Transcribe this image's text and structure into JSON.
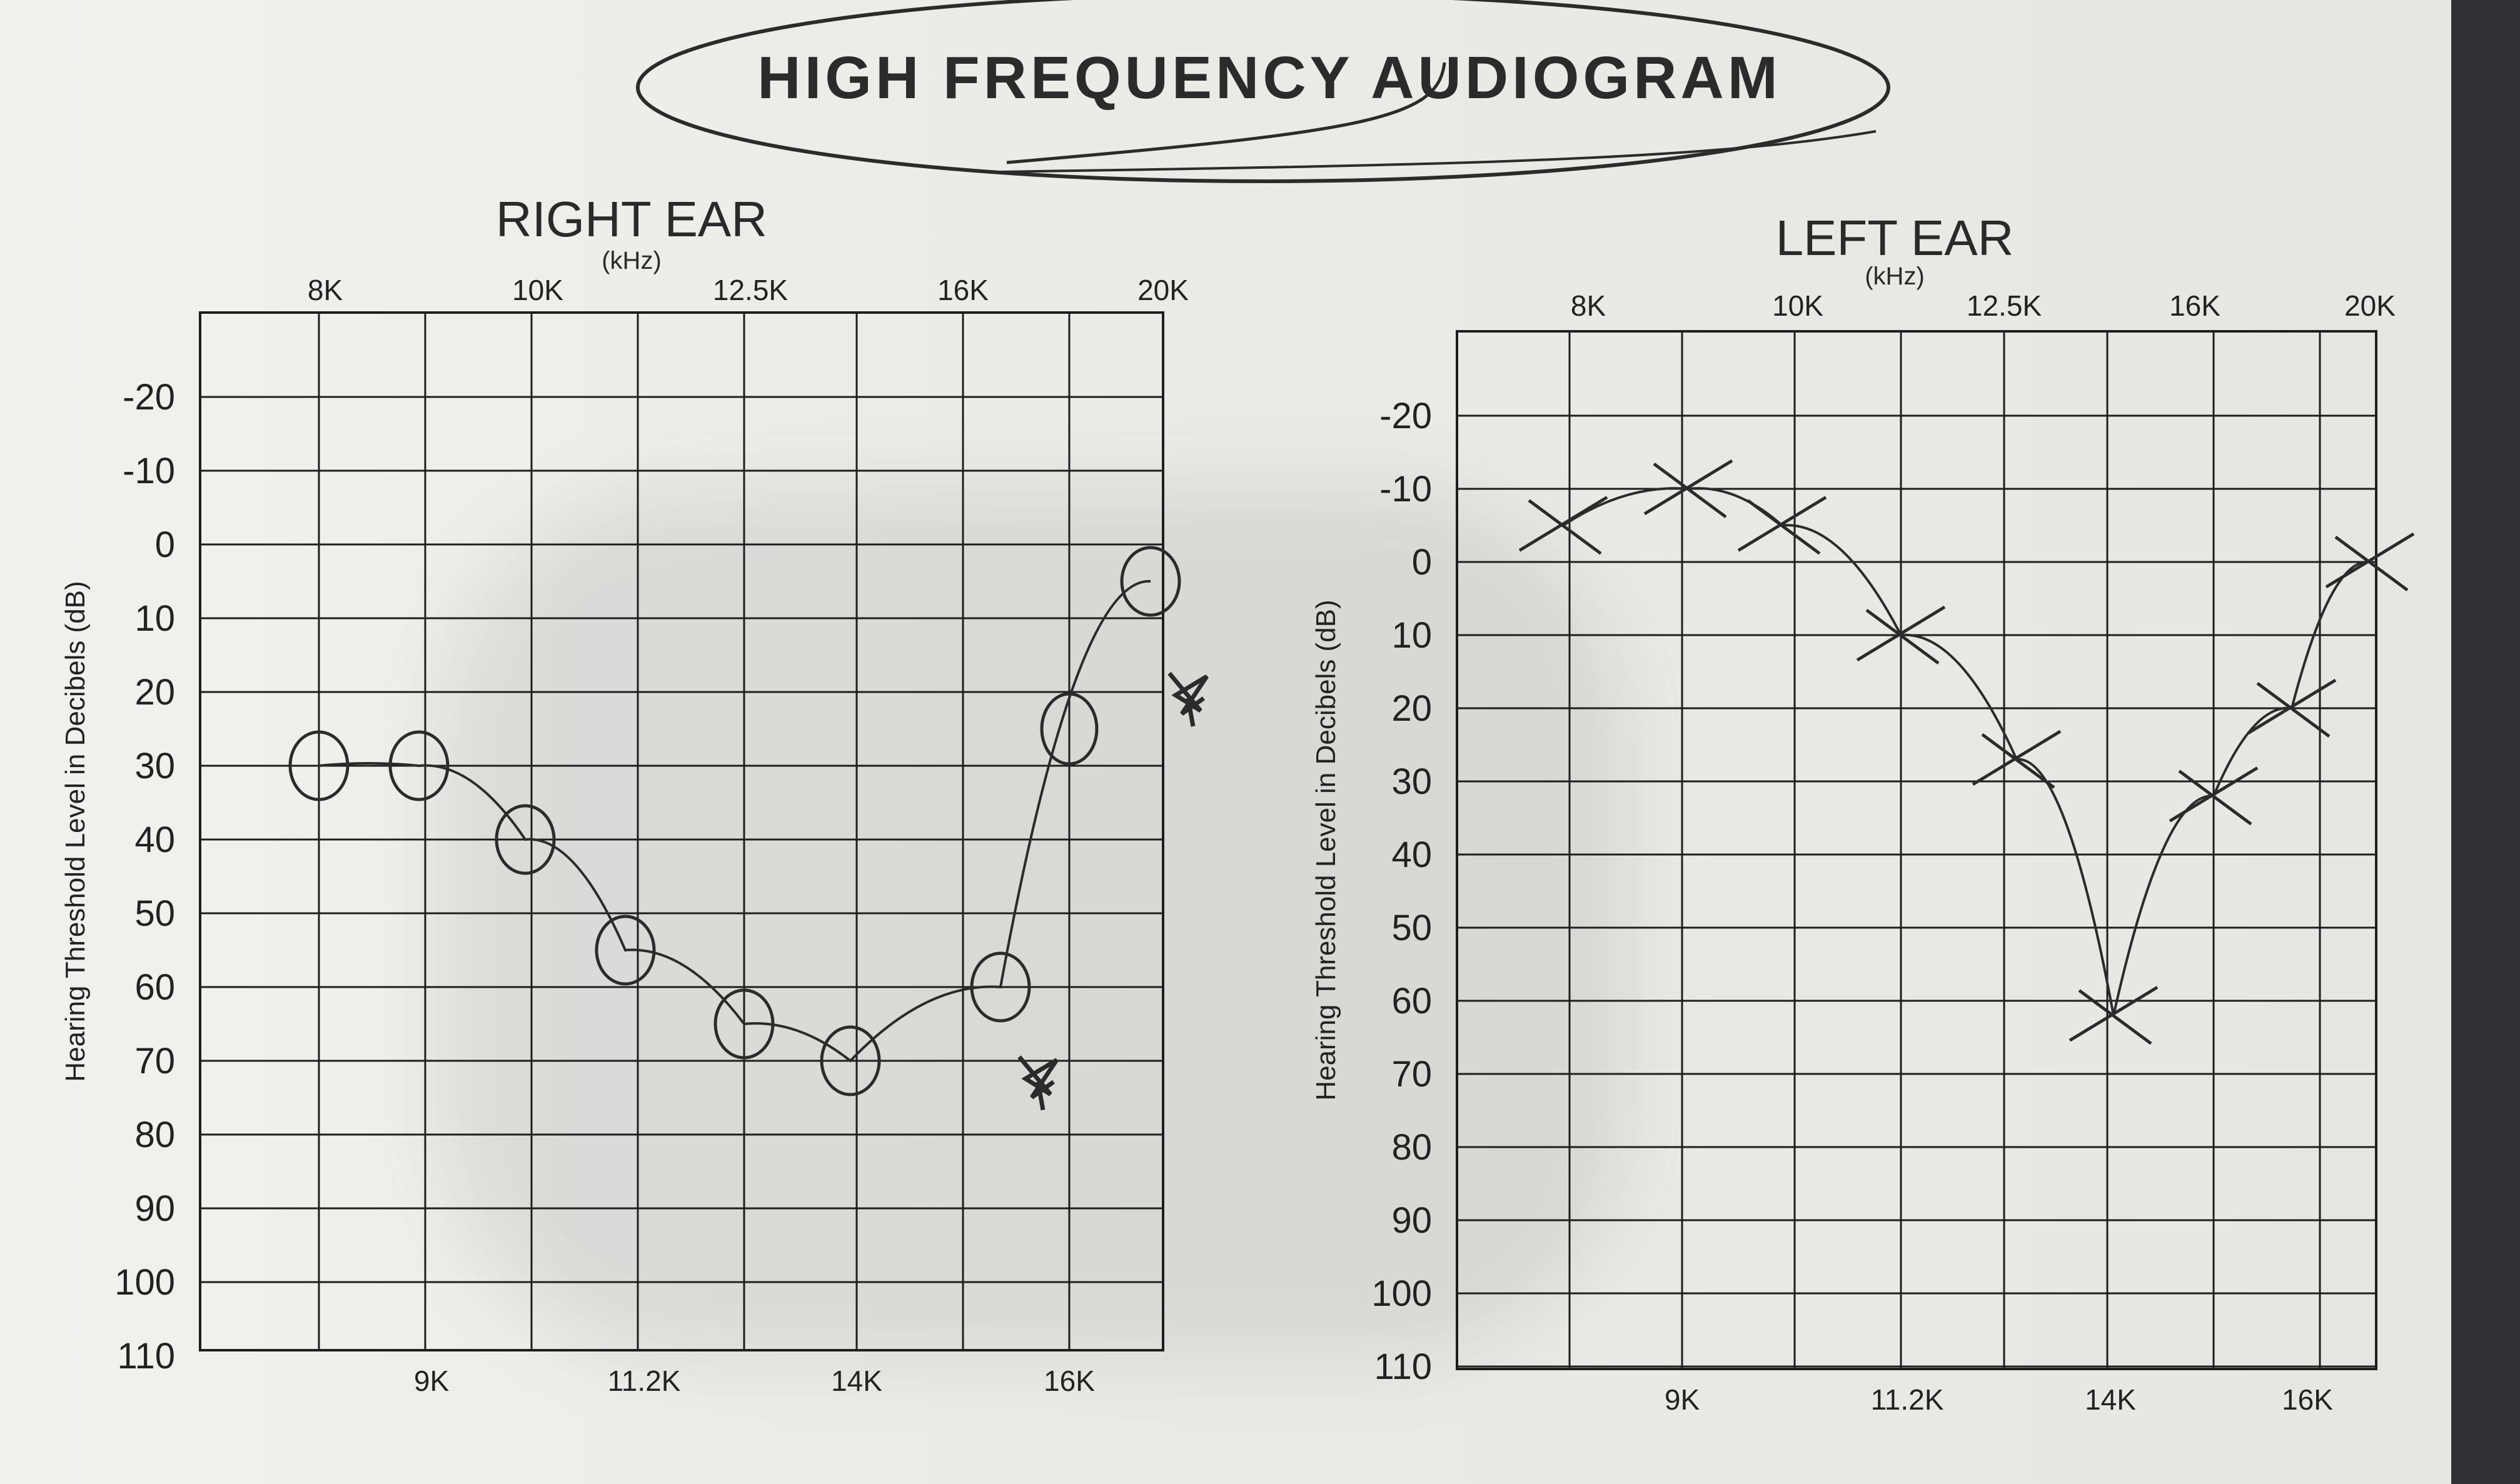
{
  "page": {
    "title": "HIGH FREQUENCY AUDIOGRAM",
    "colors": {
      "paper": "#eeeeea",
      "ink": "#222222",
      "grid": "#1e1e1e",
      "pen": "#2b2b2b"
    }
  },
  "chart_data": [
    {
      "type": "line",
      "title": "RIGHT EAR",
      "unit": "(kHz)",
      "ylabel": "Hearing Threshold Level in Decibels (dB)",
      "ylim": [
        -20,
        110
      ],
      "y_ticks": [
        "-20",
        "-10",
        "0",
        "10",
        "20",
        "30",
        "40",
        "50",
        "60",
        "70",
        "80",
        "90",
        "100",
        "110"
      ],
      "top_ticks": [
        "8K",
        "10K",
        "12.5K",
        "16K",
        "20K"
      ],
      "bottom_ticks": [
        "9K",
        "11.2K",
        "14K",
        "16K"
      ],
      "series": [
        {
          "symbol": "O",
          "x": [
            "8K",
            "9K",
            "10K",
            "11.2K",
            "12.5K",
            "14K",
            "16K",
            "20K"
          ],
          "values": [
            30,
            30,
            40,
            55,
            65,
            70,
            60,
            5
          ]
        }
      ],
      "extra_marks": [
        {
          "symbol": "O",
          "x": "18K",
          "value": 25
        }
      ],
      "no_response_marks": [
        {
          "x": "16K",
          "value": 72
        },
        {
          "x": "20K",
          "value": 20
        }
      ]
    },
    {
      "type": "line",
      "title": "LEFT EAR",
      "unit": "(kHz)",
      "ylabel": "Hearing Threshold Level in Decibels (dB)",
      "ylim": [
        -20,
        110
      ],
      "y_ticks": [
        "-20",
        "-10",
        "0",
        "10",
        "20",
        "30",
        "40",
        "50",
        "60",
        "70",
        "80",
        "90",
        "100",
        "110"
      ],
      "top_ticks": [
        "8K",
        "10K",
        "12.5K",
        "16K",
        "20K"
      ],
      "bottom_ticks": [
        "9K",
        "11.2K",
        "14K",
        "16K"
      ],
      "series": [
        {
          "symbol": "X",
          "x": [
            "8K",
            "9K",
            "10K",
            "11.2K",
            "12.5K",
            "14K",
            "16K",
            "18K",
            "20K"
          ],
          "values": [
            -5,
            -10,
            -5,
            10,
            27,
            62,
            32,
            20,
            0
          ]
        }
      ]
    }
  ]
}
